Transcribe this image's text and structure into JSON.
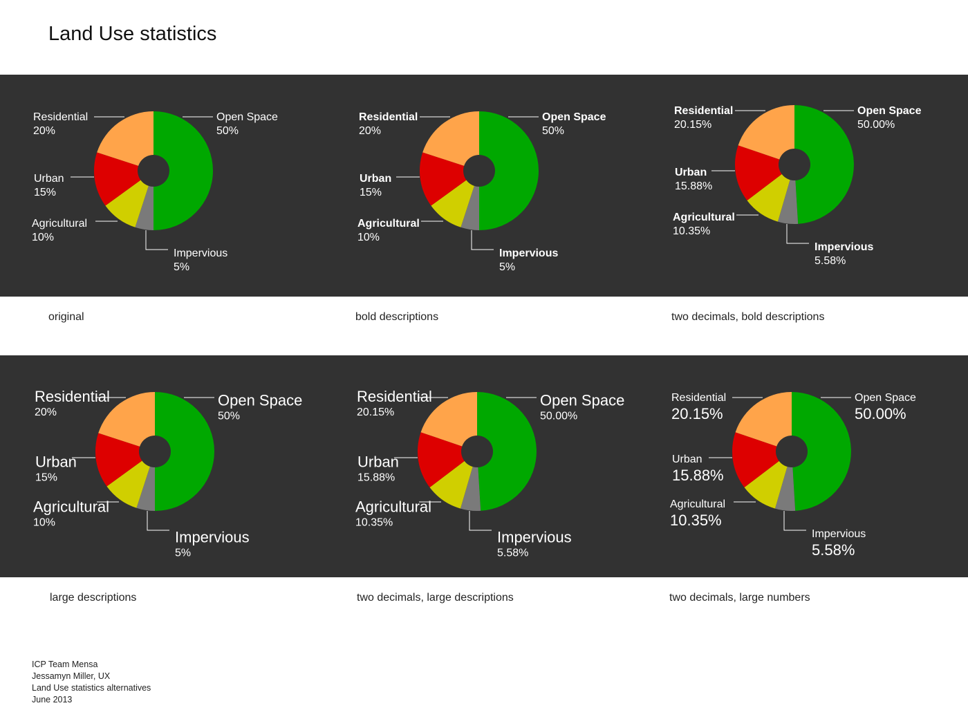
{
  "title": "Land Use statistics",
  "colors": {
    "background_band": "#323232",
    "Open Space": "#00a800",
    "Impervious": "#7a7a7a",
    "Agricultural": "#d0cf00",
    "Urban": "#dd0000",
    "Residential": "#ffa44a",
    "hole": "#323232"
  },
  "credits": [
    "ICP Team Mensa",
    "Jessamyn Miller, UX",
    "Land Use statistics alternatives",
    "June 2013"
  ],
  "chart_data": [
    {
      "type": "pie",
      "variant": "original",
      "caption": "original",
      "categories": [
        "Open Space",
        "Impervious",
        "Agricultural",
        "Urban",
        "Residential"
      ],
      "values": [
        50,
        5,
        10,
        15,
        20
      ],
      "value_labels": [
        "50%",
        "5%",
        "10%",
        "15%",
        "20%"
      ]
    },
    {
      "type": "pie",
      "variant": "bold",
      "caption": "bold descriptions",
      "categories": [
        "Open Space",
        "Impervious",
        "Agricultural",
        "Urban",
        "Residential"
      ],
      "values": [
        50,
        5,
        10,
        15,
        20
      ],
      "value_labels": [
        "50%",
        "5%",
        "10%",
        "15%",
        "20%"
      ]
    },
    {
      "type": "pie",
      "variant": "bold",
      "caption": "two decimals, bold descriptions",
      "categories": [
        "Open Space",
        "Impervious",
        "Agricultural",
        "Urban",
        "Residential"
      ],
      "values": [
        50.0,
        5.58,
        10.35,
        15.88,
        20.15
      ],
      "value_labels": [
        "50.00%",
        "5.58%",
        "10.35%",
        "15.88%",
        "20.15%"
      ]
    },
    {
      "type": "pie",
      "variant": "large-descriptions",
      "caption": "large descriptions",
      "categories": [
        "Open Space",
        "Impervious",
        "Agricultural",
        "Urban",
        "Residential"
      ],
      "values": [
        50,
        5,
        10,
        15,
        20
      ],
      "value_labels": [
        "50%",
        "5%",
        "10%",
        "15%",
        "20%"
      ]
    },
    {
      "type": "pie",
      "variant": "large-descriptions",
      "caption": "two decimals, large descriptions",
      "categories": [
        "Open Space",
        "Impervious",
        "Agricultural",
        "Urban",
        "Residential"
      ],
      "values": [
        50.0,
        5.58,
        10.35,
        15.88,
        20.15
      ],
      "value_labels": [
        "50.00%",
        "5.58%",
        "10.35%",
        "15.88%",
        "20.15%"
      ]
    },
    {
      "type": "pie",
      "variant": "large-numbers",
      "caption": "two decimals, large numbers",
      "categories": [
        "Open Space",
        "Impervious",
        "Agricultural",
        "Urban",
        "Residential"
      ],
      "values": [
        50.0,
        5.58,
        10.35,
        15.88,
        20.15
      ],
      "value_labels": [
        "50.00%",
        "5.58%",
        "10.35%",
        "15.88%",
        "20.15%"
      ]
    }
  ]
}
